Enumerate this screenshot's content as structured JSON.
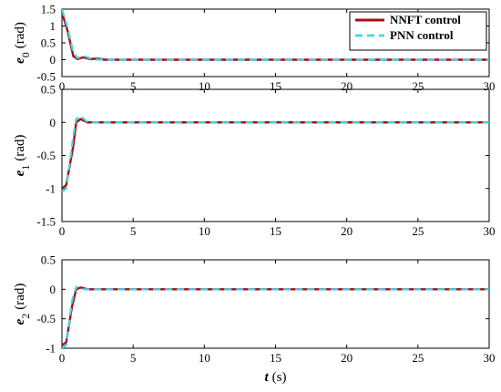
{
  "chart_data": [
    {
      "type": "line",
      "ylabel_symbol": "e",
      "ylabel_sub": "0",
      "ylabel_unit": "(rad)",
      "xlim": [
        0,
        30
      ],
      "ylim": [
        -0.5,
        1.5
      ],
      "xticks": [
        0,
        5,
        10,
        15,
        20,
        25,
        30
      ],
      "yticks": [
        -0.5,
        0,
        0.5,
        1,
        1.5
      ],
      "ytick_labels": [
        "-0.5",
        "0",
        "0.5",
        "1",
        "1.5"
      ],
      "legend": true,
      "series": [
        {
          "name": "NNFT control",
          "x": [
            0,
            0.4,
            0.8,
            1.1,
            1.5,
            2.0,
            2.5,
            3.0,
            30
          ],
          "values": [
            1.4,
            0.85,
            0.1,
            0.02,
            0.07,
            0.02,
            0.03,
            0.0,
            0.0
          ]
        },
        {
          "name": "PNN control",
          "x": [
            0,
            0.4,
            0.8,
            1.1,
            1.5,
            2.0,
            2.5,
            3.0,
            30
          ],
          "values": [
            1.5,
            0.95,
            0.2,
            0.05,
            0.12,
            0.04,
            0.0,
            0.0,
            0.0
          ]
        }
      ]
    },
    {
      "type": "line",
      "ylabel_symbol": "e",
      "ylabel_sub": "1",
      "ylabel_unit": "(rad)",
      "xlim": [
        0,
        30
      ],
      "ylim": [
        -1.5,
        0.5
      ],
      "xticks": [
        0,
        5,
        10,
        15,
        20,
        25,
        30
      ],
      "yticks": [
        -1.5,
        -1,
        -0.5,
        0,
        0.5
      ],
      "ytick_labels": [
        "-1.5",
        "-1",
        "-0.5",
        "0",
        "0.5"
      ],
      "legend": false,
      "series": [
        {
          "name": "NNFT control",
          "x": [
            0,
            0.3,
            0.8,
            1.0,
            1.3,
            1.8,
            30
          ],
          "values": [
            -1.0,
            -0.95,
            -0.35,
            0.0,
            0.05,
            0.0,
            0.0
          ]
        },
        {
          "name": "PNN control",
          "x": [
            0,
            0.3,
            0.8,
            1.0,
            1.3,
            1.8,
            30
          ],
          "values": [
            -1.05,
            -1.0,
            -0.2,
            0.05,
            0.1,
            0.0,
            0.0
          ]
        }
      ]
    },
    {
      "type": "line",
      "ylabel_symbol": "e",
      "ylabel_sub": "2",
      "ylabel_unit": "(rad)",
      "xlim": [
        0,
        30
      ],
      "ylim": [
        -1,
        0.5
      ],
      "xticks": [
        0,
        5,
        10,
        15,
        20,
        25,
        30
      ],
      "yticks": [
        -1,
        -0.5,
        0,
        0.5
      ],
      "ytick_labels": [
        "-1",
        "-0.5",
        "0",
        "0.5"
      ],
      "xtick_labels": [
        "0",
        "5",
        "10",
        "15",
        "20",
        "25",
        "30"
      ],
      "xlabel_symbol": "t",
      "xlabel_unit": "(s)",
      "legend": false,
      "series": [
        {
          "name": "NNFT control",
          "x": [
            0,
            0.3,
            0.7,
            1.0,
            1.3,
            1.8,
            30
          ],
          "values": [
            -0.95,
            -0.9,
            -0.3,
            0.0,
            0.03,
            0.0,
            0.0
          ]
        },
        {
          "name": "PNN control",
          "x": [
            0,
            0.3,
            0.7,
            1.0,
            1.3,
            1.8,
            30
          ],
          "values": [
            -1.0,
            -0.95,
            -0.2,
            0.04,
            0.0,
            0.0,
            0.0
          ]
        }
      ]
    }
  ],
  "legend": {
    "items": [
      {
        "label": "NNFT control",
        "color": "#a50f15",
        "dash": "solid"
      },
      {
        "label": "PNN control",
        "color": "#40d8e8",
        "dash": "dashed"
      }
    ]
  },
  "colors": {
    "nnft": "#a50f15",
    "pnn": "#40d8e8",
    "axis": "#000000"
  }
}
